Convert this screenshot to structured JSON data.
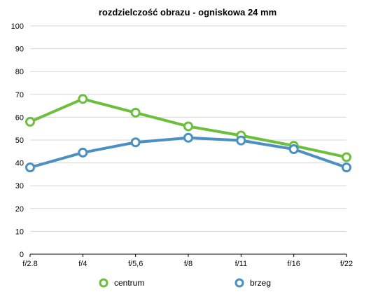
{
  "chart_data": {
    "type": "line",
    "title": "rozdzielczość obrazu - ogniskowa 24 mm",
    "xlabel": "",
    "ylabel": "",
    "categories": [
      "f/2.8",
      "f/4",
      "f/5,6",
      "f/8",
      "f/11",
      "f/16",
      "f/22"
    ],
    "ylim": [
      0,
      100
    ],
    "yticks": [
      0,
      10,
      20,
      30,
      40,
      50,
      60,
      70,
      80,
      90,
      100
    ],
    "grid": true,
    "legend_position": "bottom",
    "series": [
      {
        "name": "centrum",
        "color": "#6cbf3c",
        "values": [
          58,
          68,
          62,
          56,
          52,
          47.5,
          42.5
        ]
      },
      {
        "name": "brzeg",
        "color": "#4a90c2",
        "values": [
          38,
          44.5,
          49,
          51,
          49.8,
          46,
          38
        ]
      }
    ]
  }
}
